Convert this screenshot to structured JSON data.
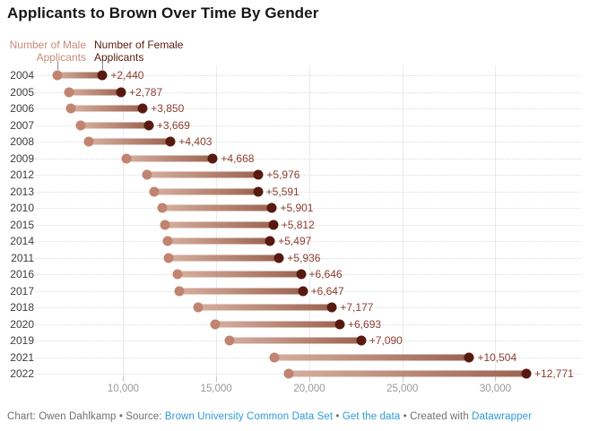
{
  "title": "Applicants to Brown Over Time By Gender",
  "legend": {
    "male_line1": "Number of Male",
    "male_line2": "Applicants",
    "female_line1": "Number of Female",
    "female_line2": "Applicants"
  },
  "colors": {
    "male": "#c08470",
    "male_text": "#c68b7a",
    "female": "#581a10",
    "diff_label": "#8b3d2e",
    "bar_start": "#d6ae9e",
    "bar_end": "#9c6450",
    "link": "#2e9bd3"
  },
  "chart_data": {
    "type": "dumbbell",
    "title": "Applicants to Brown Over Time By Gender",
    "orientation": "horizontal",
    "x_domain": [
      5400,
      34800
    ],
    "grid": true,
    "series_names": [
      "Number of Male Applicants",
      "Number of Female Applicants"
    ],
    "x_ticks": [
      {
        "value": 10000,
        "label": "10,000"
      },
      {
        "value": 15000,
        "label": "15,000"
      },
      {
        "value": 20000,
        "label": "20,000"
      },
      {
        "value": 25000,
        "label": "25,000"
      },
      {
        "value": 30000,
        "label": "30,000"
      }
    ],
    "rows": [
      {
        "year": "2004",
        "male": 6450,
        "female": 8890,
        "diff_label": "+2,440"
      },
      {
        "year": "2005",
        "male": 7100,
        "female": 9887,
        "diff_label": "+2,787"
      },
      {
        "year": "2006",
        "male": 7200,
        "female": 11050,
        "diff_label": "+3,850"
      },
      {
        "year": "2007",
        "male": 7700,
        "female": 11369,
        "diff_label": "+3,669"
      },
      {
        "year": "2008",
        "male": 8150,
        "female": 12553,
        "diff_label": "+4,403"
      },
      {
        "year": "2009",
        "male": 10150,
        "female": 14818,
        "diff_label": "+4,668"
      },
      {
        "year": "2012",
        "male": 11300,
        "female": 17276,
        "diff_label": "+5,976"
      },
      {
        "year": "2013",
        "male": 11650,
        "female": 17241,
        "diff_label": "+5,591"
      },
      {
        "year": "2010",
        "male": 12100,
        "female": 18001,
        "diff_label": "+5,901"
      },
      {
        "year": "2015",
        "male": 12250,
        "female": 18062,
        "diff_label": "+5,812"
      },
      {
        "year": "2014",
        "male": 12400,
        "female": 17897,
        "diff_label": "+5,497"
      },
      {
        "year": "2011",
        "male": 12450,
        "female": 18386,
        "diff_label": "+5,936"
      },
      {
        "year": "2016",
        "male": 12900,
        "female": 19546,
        "diff_label": "+6,646"
      },
      {
        "year": "2017",
        "male": 13000,
        "female": 19647,
        "diff_label": "+6,647"
      },
      {
        "year": "2018",
        "male": 14050,
        "female": 21227,
        "diff_label": "+7,177"
      },
      {
        "year": "2020",
        "male": 14950,
        "female": 21643,
        "diff_label": "+6,693"
      },
      {
        "year": "2019",
        "male": 15700,
        "female": 22790,
        "diff_label": "+7,090"
      },
      {
        "year": "2021",
        "male": 18100,
        "female": 28604,
        "diff_label": "+10,504"
      },
      {
        "year": "2022",
        "male": 18900,
        "female": 31671,
        "diff_label": "+12,771"
      }
    ]
  },
  "footer": {
    "parts": [
      {
        "text": "Chart: Owen Dahlkamp • Source: ",
        "link": false
      },
      {
        "text": "Brown University Common Data Set",
        "link": true
      },
      {
        "text": " • ",
        "link": false
      },
      {
        "text": "Get the data",
        "link": true
      },
      {
        "text": " • Created with ",
        "link": false
      },
      {
        "text": "Datawrapper",
        "link": true
      }
    ]
  }
}
